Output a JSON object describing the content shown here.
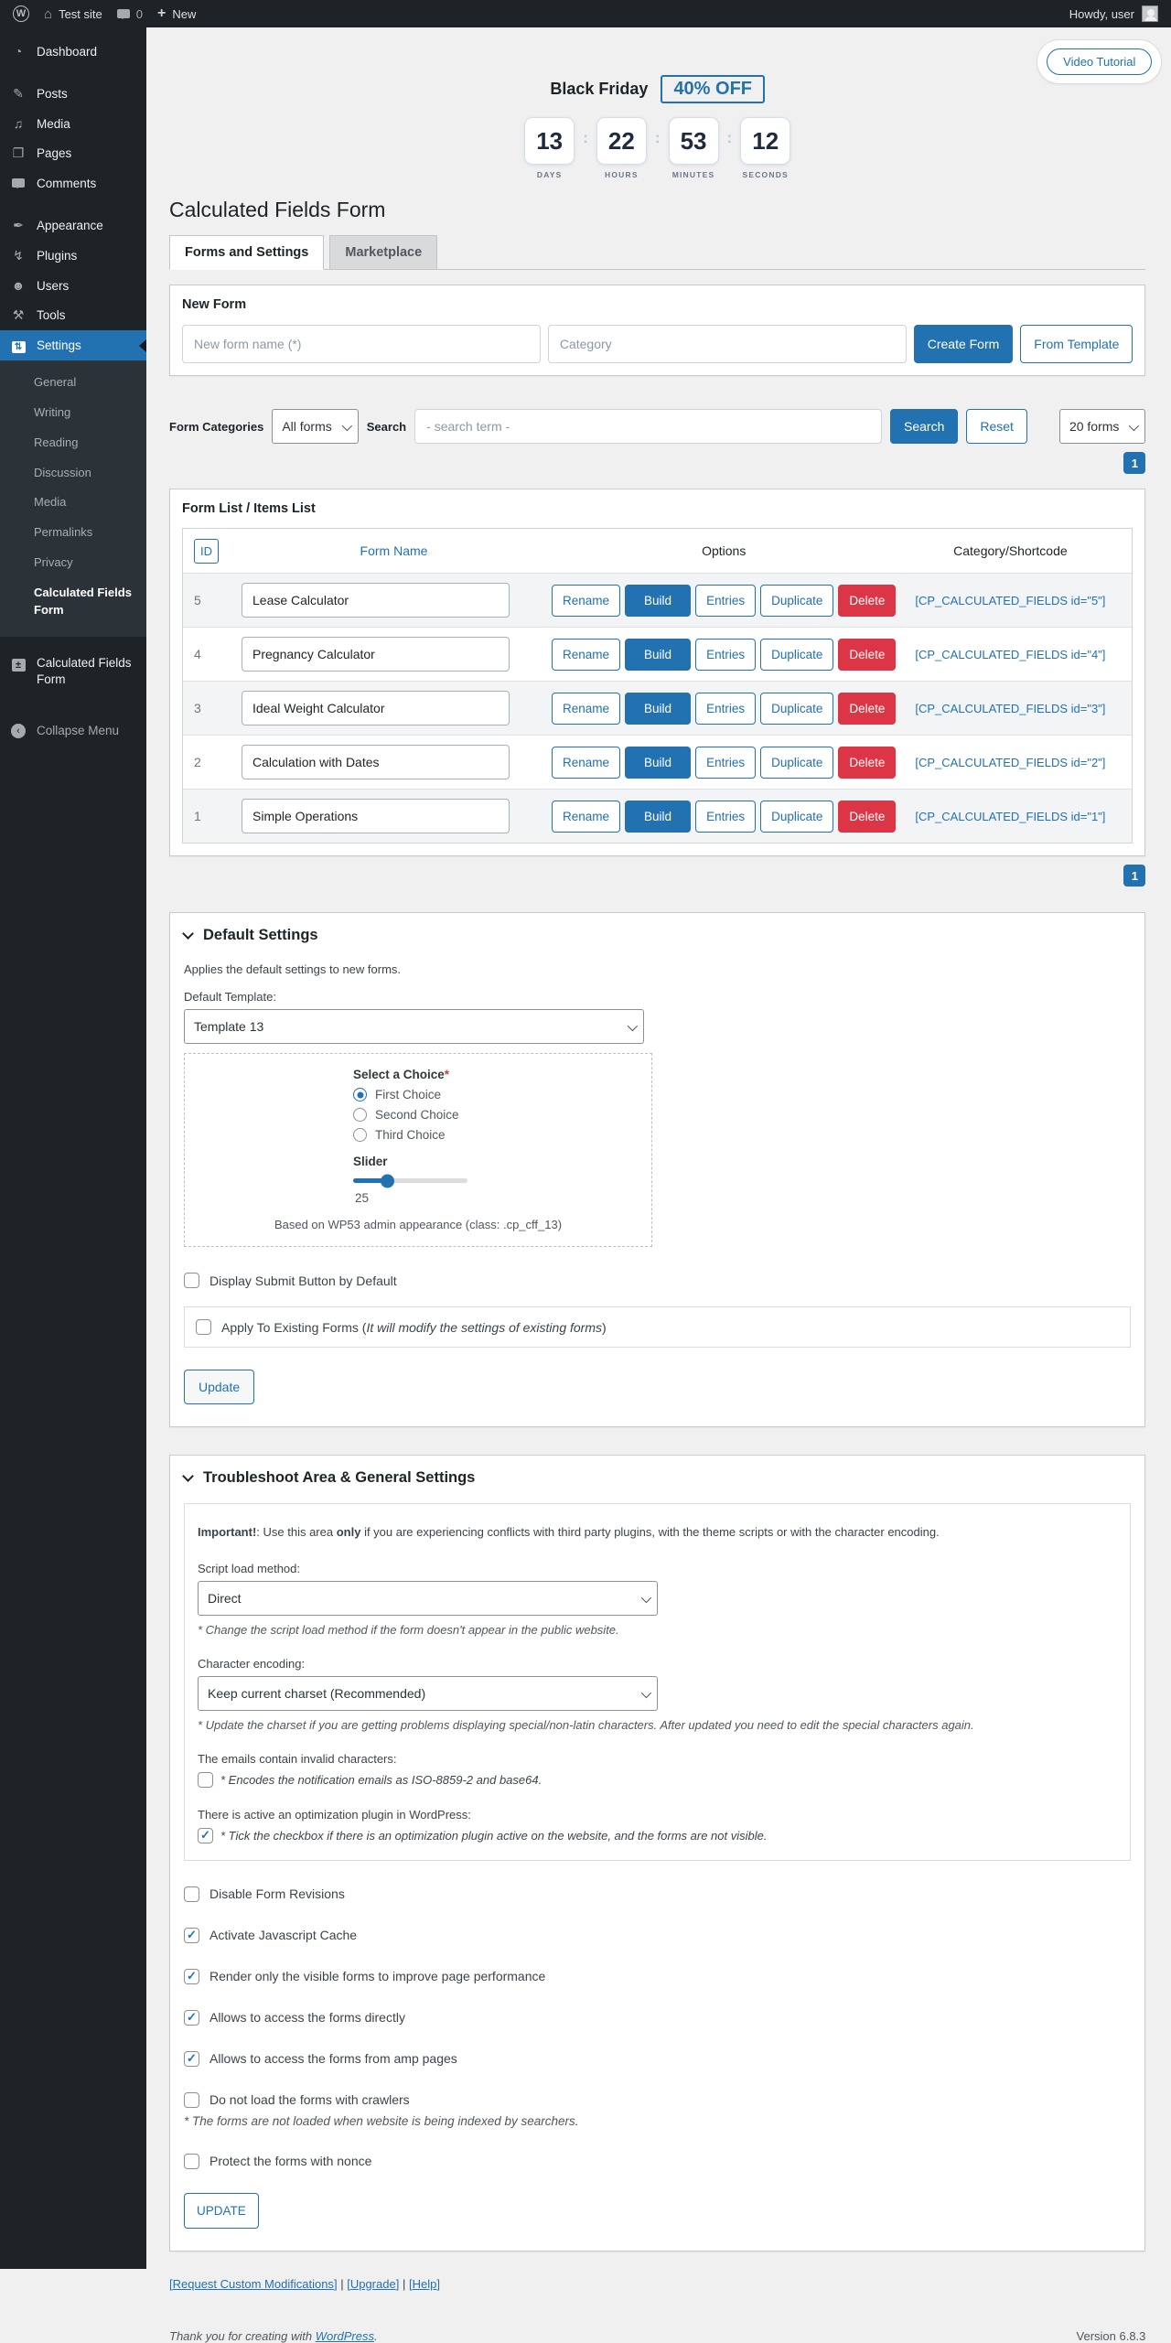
{
  "colors": {
    "accent_blue": "#2271b1",
    "danger_red": "#dc3545",
    "admin_dark": "#1d2327",
    "page_bg": "#f0f0f1"
  },
  "admin_bar": {
    "wp_logo": "W",
    "site_name": "Test site",
    "comments_count": "0",
    "plus": "+",
    "new_label": "New",
    "howdy": "Howdy, user"
  },
  "sidebar": {
    "items": [
      {
        "label": "Dashboard",
        "icon": "◔"
      },
      {
        "label": "Posts",
        "icon": "✎"
      },
      {
        "label": "Media",
        "icon": "♫"
      },
      {
        "label": "Pages",
        "icon": "❐"
      },
      {
        "label": "Comments",
        "icon": ""
      },
      {
        "label": "Appearance",
        "icon": "✒"
      },
      {
        "label": "Plugins",
        "icon": "↯"
      },
      {
        "label": "Users",
        "icon": "☻"
      },
      {
        "label": "Tools",
        "icon": "⚒"
      },
      {
        "label": "Settings",
        "icon": "⇅"
      }
    ],
    "submenu": [
      "General",
      "Writing",
      "Reading",
      "Discussion",
      "Media",
      "Permalinks",
      "Privacy",
      "Calculated Fields Form"
    ],
    "cff_item": "Calculated Fields Form",
    "cff_icon": "±",
    "collapse_label": "Collapse Menu",
    "collapse_icon": "‹"
  },
  "promo": {
    "video_tutorial": "Video Tutorial",
    "title": "Black Friday",
    "badge": "40% OFF",
    "separator": ":",
    "countdown": [
      {
        "value": "13",
        "unit": "DAYS"
      },
      {
        "value": "22",
        "unit": "HOURS"
      },
      {
        "value": "53",
        "unit": "MINUTES"
      },
      {
        "value": "12",
        "unit": "SECONDS"
      }
    ]
  },
  "page": {
    "title": "Calculated Fields Form",
    "tabs": [
      {
        "label": "Forms and Settings",
        "active": true
      },
      {
        "label": "Marketplace",
        "active": false
      }
    ]
  },
  "new_form": {
    "heading": "New Form",
    "name_placeholder": "New form name (*)",
    "category_placeholder": "Category",
    "create_button": "Create Form",
    "from_template_button": "From Template"
  },
  "filters": {
    "categories_label": "Form Categories",
    "categories_value": "All forms",
    "search_label": "Search",
    "search_placeholder": "- search term -",
    "search_button": "Search",
    "reset_button": "Reset",
    "per_page_value": "20 forms",
    "page_badge": "1"
  },
  "form_list": {
    "heading": "Form List / Items List",
    "columns": {
      "id": "ID",
      "name": "Form Name",
      "options": "Options",
      "shortcode": "Category/Shortcode"
    },
    "actions": [
      "Rename",
      "Build",
      "Entries",
      "Duplicate",
      "Delete"
    ],
    "rows": [
      {
        "id": "5",
        "name": "Lease Calculator",
        "shortcode": "[CP_CALCULATED_FIELDS id=\"5\"]"
      },
      {
        "id": "4",
        "name": "Pregnancy Calculator",
        "shortcode": "[CP_CALCULATED_FIELDS id=\"4\"]"
      },
      {
        "id": "3",
        "name": "Ideal Weight Calculator",
        "shortcode": "[CP_CALCULATED_FIELDS id=\"3\"]"
      },
      {
        "id": "2",
        "name": "Calculation with Dates",
        "shortcode": "[CP_CALCULATED_FIELDS id=\"2\"]"
      },
      {
        "id": "1",
        "name": "Simple Operations",
        "shortcode": "[CP_CALCULATED_FIELDS id=\"1\"]"
      }
    ],
    "page_badge": "1"
  },
  "default_settings": {
    "heading": "Default Settings",
    "description": "Applies the default settings to new forms.",
    "template_label": "Default Template:",
    "template_value": "Template 13",
    "preview": {
      "choice_label": "Select a Choice",
      "required_mark": "*",
      "choices": [
        {
          "label": "First Choice",
          "selected": true
        },
        {
          "label": "Second Choice",
          "selected": false
        },
        {
          "label": "Third Choice",
          "selected": false
        }
      ],
      "slider_label": "Slider",
      "slider_value": "25",
      "slider_percent": 30,
      "note": "Based on WP53 admin appearance (class: .cp_cff_13)"
    },
    "display_submit": {
      "label": "Display Submit Button by Default",
      "checked": false
    },
    "apply_existing": {
      "prefix": "Apply To Existing Forms (",
      "italic": "It will modify the settings of existing forms",
      "suffix": ")",
      "checked": false
    },
    "update_button": "Update"
  },
  "troubleshoot": {
    "heading": "Troubleshoot Area & General Settings",
    "important": {
      "bold1": "Important!",
      "mid": ": Use this area ",
      "bold2": "only",
      "rest": " if you are experiencing conflicts with third party plugins, with the theme scripts or with the character encoding."
    },
    "script_load": {
      "label": "Script load method:",
      "value": "Direct",
      "hint": "* Change the script load method if the form doesn't appear in the public website."
    },
    "charset": {
      "label": "Character encoding:",
      "value": "Keep current charset (Recommended)",
      "hint": "* Update the charset if you are getting problems displaying special/non-latin characters. After updated you need to edit the special characters again."
    },
    "emails": {
      "label": "The emails contain invalid characters:",
      "hint": "* Encodes the notification emails as ISO-8859-2 and base64.",
      "checked": false
    },
    "optimization": {
      "label": "There is active an optimization plugin in WordPress:",
      "hint": "* Tick the checkbox if there is an optimization plugin active on the website, and the forms are not visible.",
      "checked": true
    },
    "options": [
      {
        "label": "Disable Form Revisions",
        "checked": false
      },
      {
        "label": "Activate Javascript Cache",
        "checked": true
      },
      {
        "label": "Render only the visible forms to improve page performance",
        "checked": true
      },
      {
        "label": "Allows to access the forms directly",
        "checked": true
      },
      {
        "label": "Allows to access the forms from amp pages",
        "checked": true
      },
      {
        "label": "Do not load the forms with crawlers",
        "checked": false,
        "hint": "* The forms are not loaded when website is being indexed by searchers."
      },
      {
        "label": "Protect the forms with nonce",
        "checked": false
      }
    ],
    "update_button": "UPDATE"
  },
  "footer": {
    "bracket_open": "[",
    "bracket_close": "]",
    "separator": "|",
    "links": [
      {
        "label": "Request Custom Modifications"
      },
      {
        "label": "Upgrade"
      },
      {
        "label": "Help"
      }
    ],
    "thanks_prefix": "Thank you for creating with ",
    "wordpress_link": "WordPress",
    "thanks_suffix": ".",
    "version": "Version 6.8.3"
  }
}
